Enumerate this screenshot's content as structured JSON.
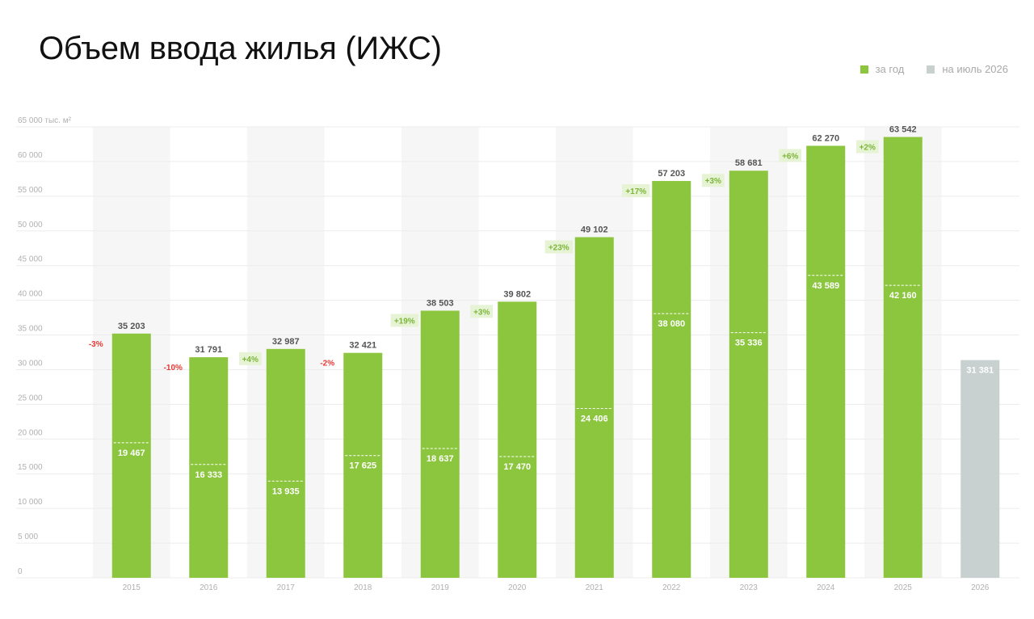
{
  "title": "Объем ввода жилья (ИЖС)",
  "legend": [
    {
      "label": "за год",
      "color": "#8cc63f"
    },
    {
      "label": "на июль 2026",
      "color": "#c8d0d0"
    }
  ],
  "colors": {
    "bar": "#8cc63f",
    "bar_partial": "#c8d0d0",
    "change_positive_bg": "#e6f3d5",
    "change_positive_text": "#7cb53a",
    "change_negative_text": "#e53935",
    "band": "#f6f6f6",
    "grid": "#ececec",
    "axis_text": "#b0b0b0",
    "value_text": "#555555"
  },
  "chart_data": {
    "type": "bar",
    "ylabel": "тыс. м²",
    "ylim": [
      0,
      65000
    ],
    "yticks": [
      "0",
      "5 000",
      "10 000",
      "15 000",
      "20 000",
      "25 000",
      "30 000",
      "35 000",
      "40 000",
      "45 000",
      "50 000",
      "55 000",
      "60 000",
      "65 000"
    ],
    "grid": true,
    "legend_position": "top-right",
    "categories": [
      "2015",
      "2016",
      "2017",
      "2018",
      "2019",
      "2020",
      "2021",
      "2022",
      "2023",
      "2024",
      "2025",
      "2026"
    ],
    "series": [
      {
        "name": "за год",
        "values": [
          35203,
          31791,
          32987,
          32421,
          38503,
          39802,
          49102,
          57203,
          58681,
          62270,
          63542,
          null
        ],
        "labels": [
          "35 203",
          "31 791",
          "32 987",
          "32 421",
          "38 503",
          "39 802",
          "49 102",
          "57 203",
          "58 681",
          "62 270",
          "63 542",
          ""
        ]
      },
      {
        "name": "на июль 2026",
        "values": [
          19467,
          16333,
          13935,
          17625,
          18637,
          17470,
          24406,
          38080,
          35336,
          43589,
          42160,
          31381
        ],
        "labels": [
          "19 467",
          "16 333",
          "13 935",
          "17 625",
          "18 637",
          "17 470",
          "24 406",
          "38 080",
          "35 336",
          "43 589",
          "42 160",
          "31 381"
        ]
      }
    ],
    "annotations": [
      "-3%",
      "-10%",
      "+4%",
      "-2%",
      "+19%",
      "+3%",
      "+23%",
      "+17%",
      "+3%",
      "+6%",
      "+2%",
      ""
    ]
  }
}
